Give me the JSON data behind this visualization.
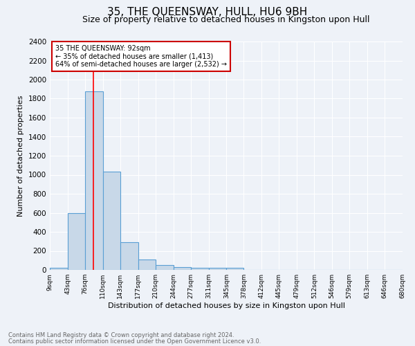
{
  "title": "35, THE QUEENSWAY, HULL, HU6 9BH",
  "subtitle": "Size of property relative to detached houses in Kingston upon Hull",
  "xlabel": "Distribution of detached houses by size in Kingston upon Hull",
  "ylabel": "Number of detached properties",
  "footnote1": "Contains HM Land Registry data © Crown copyright and database right 2024.",
  "footnote2": "Contains public sector information licensed under the Open Government Licence v3.0.",
  "annotation_title": "35 THE QUEENSWAY: 92sqm",
  "annotation_line2": "← 35% of detached houses are smaller (1,413)",
  "annotation_line3": "64% of semi-detached houses are larger (2,532) →",
  "bar_color": "#c8d8e8",
  "bar_edge_color": "#5a9fd4",
  "red_line_x": 92,
  "bin_edges": [
    9,
    43,
    76,
    110,
    143,
    177,
    210,
    244,
    277,
    311,
    345,
    378,
    412,
    445,
    479,
    512,
    546,
    579,
    613,
    646,
    680
  ],
  "bin_heights": [
    25,
    600,
    1880,
    1030,
    290,
    110,
    50,
    30,
    20,
    20,
    20,
    0,
    0,
    0,
    0,
    0,
    0,
    0,
    0,
    0
  ],
  "ylim": [
    0,
    2400
  ],
  "yticks": [
    0,
    200,
    400,
    600,
    800,
    1000,
    1200,
    1400,
    1600,
    1800,
    2000,
    2200,
    2400
  ],
  "background_color": "#eef2f8",
  "grid_color": "#ffffff",
  "title_fontsize": 11,
  "subtitle_fontsize": 9,
  "ylabel_fontsize": 8,
  "xlabel_fontsize": 8,
  "annotation_box_color": "#ffffff",
  "annotation_box_edge": "#cc0000",
  "footnote_color": "#666666",
  "footnote_fontsize": 6
}
